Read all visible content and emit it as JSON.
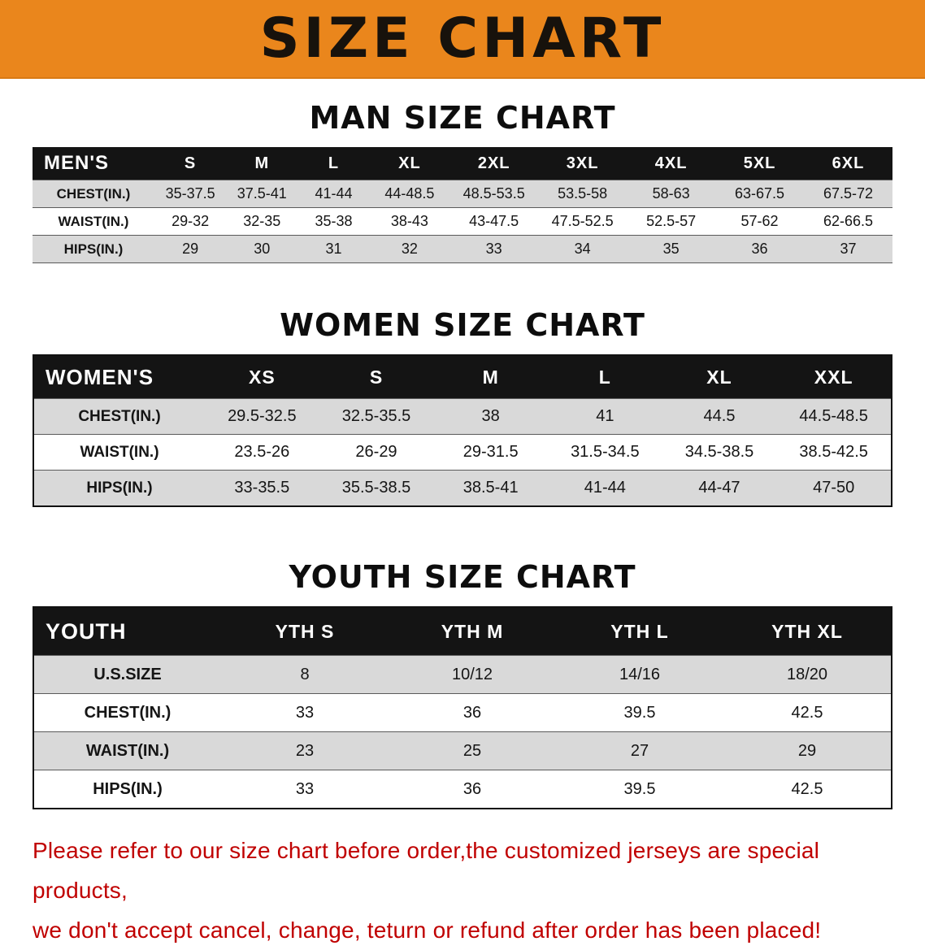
{
  "banner": {
    "title": "SIZE CHART"
  },
  "colors": {
    "banner_bg": "#ea861c",
    "header_bg": "#141414",
    "row_gray": "#d9d9d9",
    "footer_red": "#c00000"
  },
  "men": {
    "heading": "MAN SIZE CHART",
    "label": "MEN'S",
    "columns": [
      "S",
      "M",
      "L",
      "XL",
      "2XL",
      "3XL",
      "4XL",
      "5XL",
      "6XL"
    ],
    "rows": [
      {
        "label": "CHEST(IN.)",
        "values": [
          "35-37.5",
          "37.5-41",
          "41-44",
          "44-48.5",
          "48.5-53.5",
          "53.5-58",
          "58-63",
          "63-67.5",
          "67.5-72"
        ]
      },
      {
        "label": "WAIST(IN.)",
        "values": [
          "29-32",
          "32-35",
          "35-38",
          "38-43",
          "43-47.5",
          "47.5-52.5",
          "52.5-57",
          "57-62",
          "62-66.5"
        ]
      },
      {
        "label": "HIPS(IN.)",
        "values": [
          "29",
          "30",
          "31",
          "32",
          "33",
          "34",
          "35",
          "36",
          "37"
        ]
      }
    ]
  },
  "women": {
    "heading": "WOMEN SIZE CHART",
    "label": "WOMEN'S",
    "columns": [
      "XS",
      "S",
      "M",
      "L",
      "XL",
      "XXL"
    ],
    "rows": [
      {
        "label": "CHEST(IN.)",
        "values": [
          "29.5-32.5",
          "32.5-35.5",
          "38",
          "41",
          "44.5",
          "44.5-48.5"
        ]
      },
      {
        "label": "WAIST(IN.)",
        "values": [
          "23.5-26",
          "26-29",
          "29-31.5",
          "31.5-34.5",
          "34.5-38.5",
          "38.5-42.5"
        ]
      },
      {
        "label": "HIPS(IN.)",
        "values": [
          "33-35.5",
          "35.5-38.5",
          "38.5-41",
          "41-44",
          "44-47",
          "47-50"
        ]
      }
    ]
  },
  "youth": {
    "heading": "YOUTH SIZE CHART",
    "label": "YOUTH",
    "columns": [
      "YTH S",
      "YTH M",
      "YTH L",
      "YTH XL"
    ],
    "rows": [
      {
        "label": "U.S.SIZE",
        "values": [
          "8",
          "10/12",
          "14/16",
          "18/20"
        ]
      },
      {
        "label": "CHEST(IN.)",
        "values": [
          "33",
          "36",
          "39.5",
          "42.5"
        ]
      },
      {
        "label": "WAIST(IN.)",
        "values": [
          "23",
          "25",
          "27",
          "29"
        ]
      },
      {
        "label": "HIPS(IN.)",
        "values": [
          "33",
          "36",
          "39.5",
          "42.5"
        ]
      }
    ]
  },
  "footer": {
    "line1": "Please refer to our size chart before order,the customized jerseys are special products,",
    "line2": "we don't accept cancel, change, teturn or refund after order has been placed!"
  }
}
